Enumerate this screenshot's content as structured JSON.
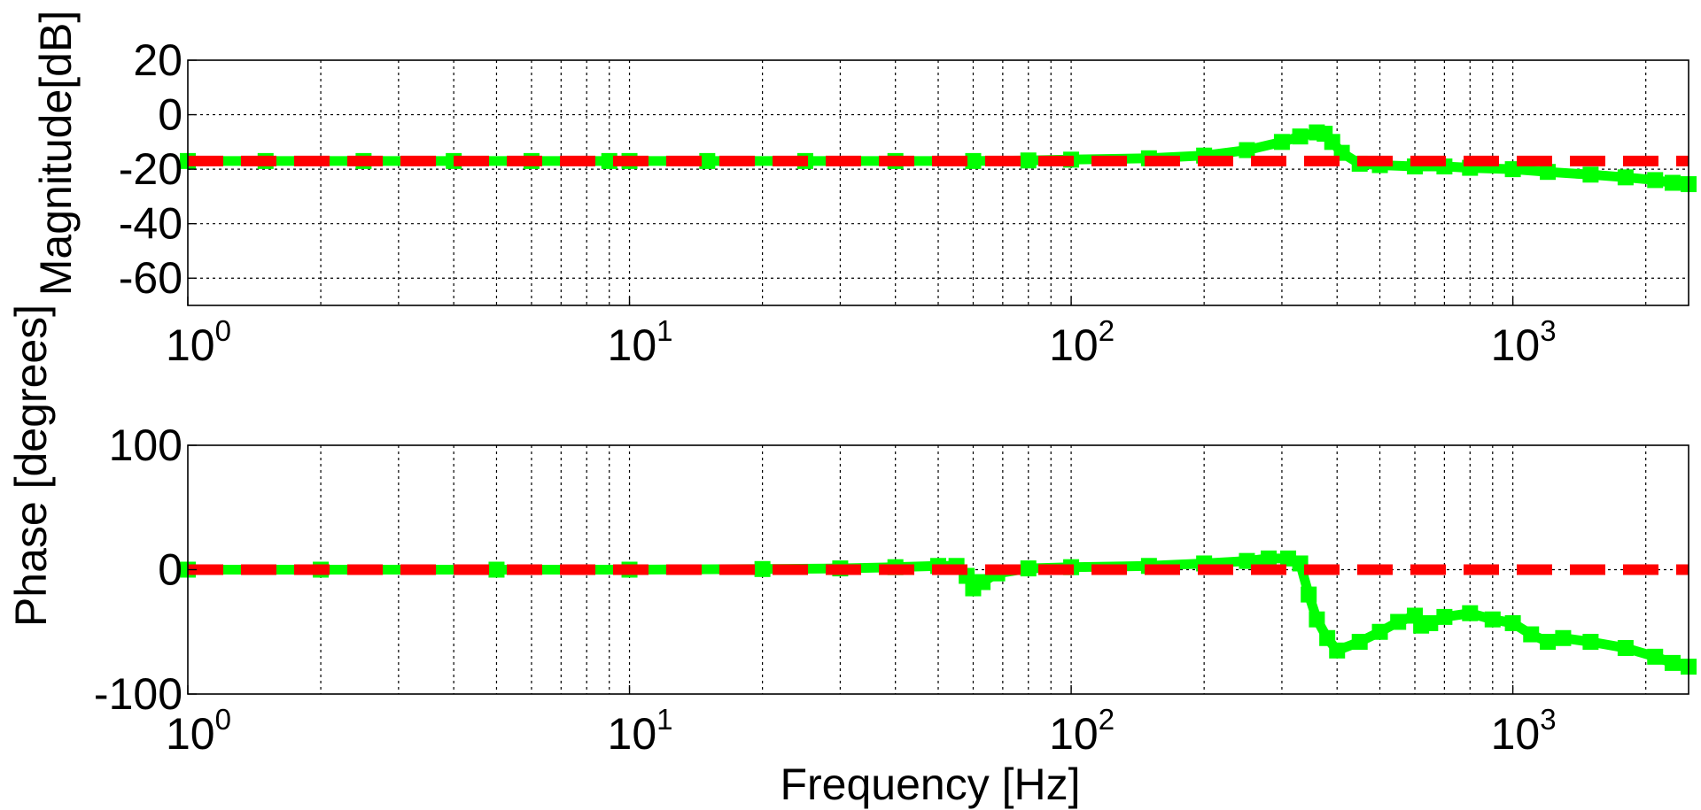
{
  "figure": {
    "xlabel": "Frequency [Hz]"
  },
  "chart_data": [
    {
      "type": "line",
      "ylabel": "Magnitude[dB]",
      "xscale": "log",
      "xlim": [
        1,
        2500
      ],
      "ylim": [
        -70,
        20
      ],
      "yticks": [
        20,
        0,
        -20,
        -40,
        -60
      ],
      "xticks": [
        {
          "base": "10",
          "exp": "0",
          "value": 1
        },
        {
          "base": "10",
          "exp": "1",
          "value": 10
        },
        {
          "base": "10",
          "exp": "2",
          "value": 100
        },
        {
          "base": "10",
          "exp": "3",
          "value": 1000
        }
      ],
      "grid": true,
      "series": [
        {
          "color": "#00ff00",
          "style": "solid-square-markers",
          "points": [
            [
              1,
              -17
            ],
            [
              1.5,
              -17
            ],
            [
              2.5,
              -17
            ],
            [
              4,
              -17
            ],
            [
              6,
              -17
            ],
            [
              9,
              -17
            ],
            [
              10,
              -17
            ],
            [
              15,
              -17
            ],
            [
              25,
              -17
            ],
            [
              40,
              -17
            ],
            [
              60,
              -17
            ],
            [
              80,
              -16.8
            ],
            [
              100,
              -16.5
            ],
            [
              150,
              -16
            ],
            [
              200,
              -15
            ],
            [
              250,
              -13
            ],
            [
              300,
              -10
            ],
            [
              330,
              -8
            ],
            [
              360,
              -6.5
            ],
            [
              375,
              -7
            ],
            [
              390,
              -10
            ],
            [
              410,
              -14
            ],
            [
              450,
              -18
            ],
            [
              500,
              -18.5
            ],
            [
              600,
              -19
            ],
            [
              700,
              -19
            ],
            [
              800,
              -19.5
            ],
            [
              1000,
              -20
            ],
            [
              1200,
              -21
            ],
            [
              1500,
              -22
            ],
            [
              1800,
              -23
            ],
            [
              2100,
              -24
            ],
            [
              2300,
              -25
            ],
            [
              2500,
              -25.5
            ]
          ]
        },
        {
          "color": "#ff0000",
          "style": "dashed",
          "points": [
            [
              1,
              -17
            ],
            [
              2500,
              -17
            ]
          ]
        }
      ]
    },
    {
      "type": "line",
      "ylabel": "Phase [degrees]",
      "xscale": "log",
      "xlim": [
        1,
        2500
      ],
      "ylim": [
        -100,
        100
      ],
      "yticks": [
        100,
        0,
        -100
      ],
      "xticks": [
        {
          "base": "10",
          "exp": "0",
          "value": 1
        },
        {
          "base": "10",
          "exp": "1",
          "value": 10
        },
        {
          "base": "10",
          "exp": "2",
          "value": 100
        },
        {
          "base": "10",
          "exp": "3",
          "value": 1000
        }
      ],
      "grid": true,
      "series": [
        {
          "color": "#00ff00",
          "style": "solid-square-markers",
          "points": [
            [
              1,
              0
            ],
            [
              2,
              0
            ],
            [
              5,
              0
            ],
            [
              10,
              0
            ],
            [
              20,
              0.5
            ],
            [
              30,
              1
            ],
            [
              40,
              2
            ],
            [
              50,
              3
            ],
            [
              55,
              3
            ],
            [
              58,
              -5
            ],
            [
              60,
              -15
            ],
            [
              63,
              -10
            ],
            [
              68,
              -3
            ],
            [
              80,
              1
            ],
            [
              100,
              2
            ],
            [
              150,
              3
            ],
            [
              200,
              5
            ],
            [
              250,
              7
            ],
            [
              280,
              9
            ],
            [
              310,
              9
            ],
            [
              330,
              5
            ],
            [
              345,
              -20
            ],
            [
              360,
              -40
            ],
            [
              380,
              -55
            ],
            [
              400,
              -65
            ],
            [
              450,
              -58
            ],
            [
              500,
              -50
            ],
            [
              550,
              -42
            ],
            [
              600,
              -37
            ],
            [
              620,
              -45
            ],
            [
              650,
              -43
            ],
            [
              700,
              -38
            ],
            [
              800,
              -35
            ],
            [
              900,
              -40
            ],
            [
              1000,
              -43
            ],
            [
              1100,
              -52
            ],
            [
              1200,
              -58
            ],
            [
              1300,
              -55
            ],
            [
              1500,
              -58
            ],
            [
              1800,
              -63
            ],
            [
              2100,
              -70
            ],
            [
              2300,
              -75
            ],
            [
              2500,
              -78
            ]
          ]
        },
        {
          "color": "#ff0000",
          "style": "dashed",
          "points": [
            [
              1,
              0
            ],
            [
              2500,
              0
            ]
          ]
        }
      ]
    }
  ]
}
